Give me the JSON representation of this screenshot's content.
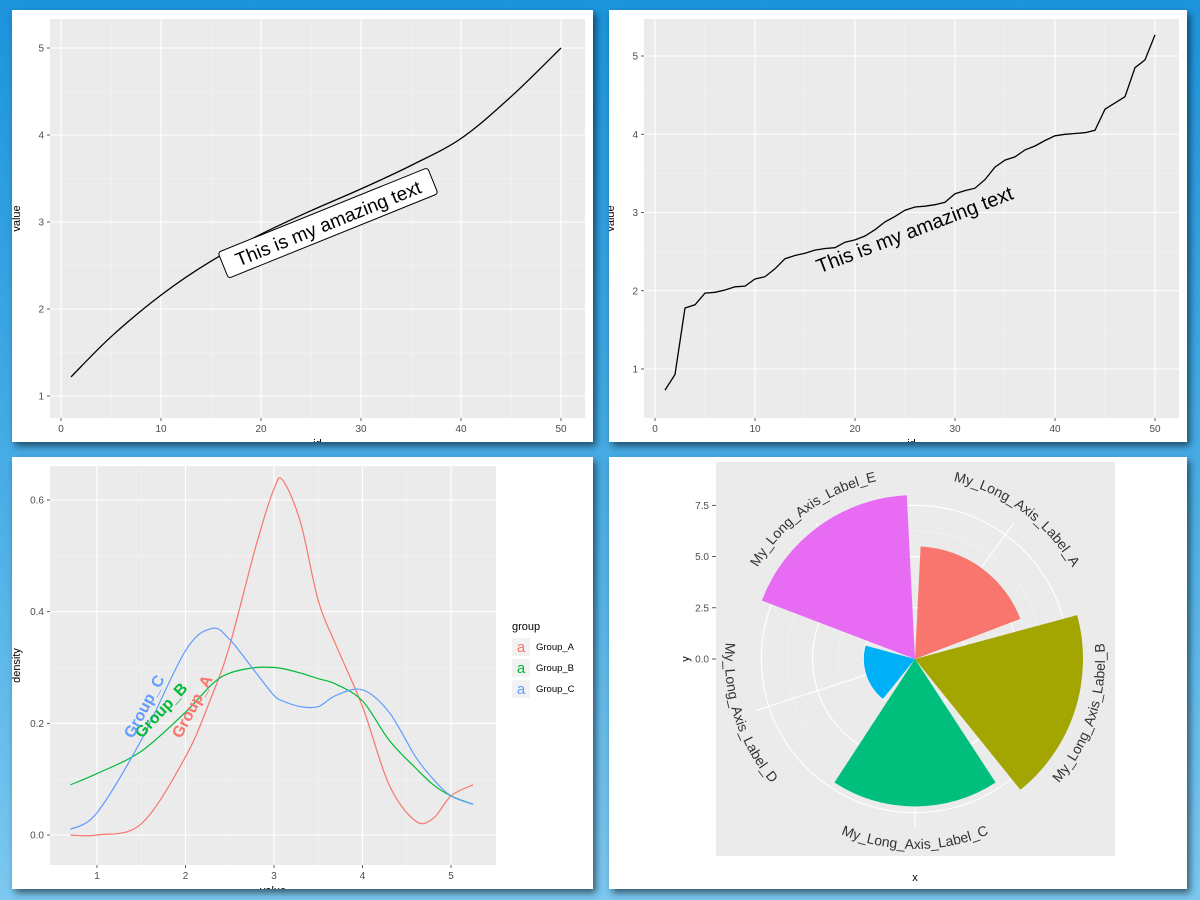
{
  "chart_data": [
    {
      "type": "line",
      "xlabel": "id",
      "ylabel": "value",
      "xlim": [
        1,
        50
      ],
      "ylim": [
        1,
        5
      ],
      "x_ticks": [
        "0",
        "10",
        "20",
        "30",
        "40",
        "50"
      ],
      "y_ticks": [
        "1",
        "2",
        "3",
        "4",
        "5"
      ],
      "annotation": "This is my amazing text",
      "annotation_style": "label-box",
      "grid": true,
      "x": [
        1,
        5,
        10,
        15,
        20,
        25,
        30,
        35,
        40,
        45,
        50
      ],
      "y": [
        1.22,
        1.68,
        2.16,
        2.55,
        2.86,
        3.13,
        3.38,
        3.65,
        3.96,
        4.44,
        5.0
      ]
    },
    {
      "type": "line",
      "xlabel": "id",
      "ylabel": "value",
      "xlim": [
        1,
        50
      ],
      "ylim": [
        0.73,
        5.27
      ],
      "x_ticks": [
        "0",
        "10",
        "20",
        "30",
        "40",
        "50"
      ],
      "y_ticks": [
        "1",
        "2",
        "3",
        "4",
        "5"
      ],
      "annotation": "This is my amazing text",
      "annotation_style": "plain",
      "grid": true,
      "x": [
        1,
        2,
        3,
        4,
        5,
        6,
        7,
        8,
        9,
        10,
        11,
        12,
        13,
        14,
        15,
        16,
        17,
        18,
        19,
        20,
        21,
        22,
        23,
        24,
        25,
        26,
        27,
        28,
        29,
        30,
        31,
        32,
        33,
        34,
        35,
        36,
        37,
        38,
        39,
        40,
        41,
        42,
        43,
        44,
        45,
        46,
        47,
        48,
        49,
        50
      ],
      "y": [
        0.73,
        0.93,
        1.78,
        1.82,
        1.97,
        1.98,
        2.01,
        2.05,
        2.06,
        2.15,
        2.18,
        2.28,
        2.41,
        2.45,
        2.48,
        2.52,
        2.54,
        2.55,
        2.62,
        2.65,
        2.7,
        2.78,
        2.88,
        2.95,
        3.03,
        3.07,
        3.08,
        3.1,
        3.13,
        3.24,
        3.28,
        3.31,
        3.42,
        3.58,
        3.67,
        3.71,
        3.8,
        3.85,
        3.92,
        3.98,
        4.0,
        4.01,
        4.02,
        4.05,
        4.32,
        4.4,
        4.48,
        4.85,
        4.95,
        5.27
      ]
    },
    {
      "type": "line",
      "subtype": "density",
      "xlabel": "value",
      "ylabel": "density",
      "xlim": [
        0.7,
        5.3
      ],
      "ylim": [
        0,
        0.65
      ],
      "x_ticks": [
        "1",
        "2",
        "3",
        "4",
        "5"
      ],
      "y_ticks": [
        "0.0",
        "0.2",
        "0.4",
        "0.6"
      ],
      "grid": true,
      "legend": {
        "title": "group",
        "position": "right",
        "key_glyph": "a"
      },
      "x": [
        0.7,
        1.0,
        1.5,
        2.0,
        2.3,
        2.5,
        2.8,
        3.0,
        3.1,
        3.3,
        3.5,
        3.7,
        4.0,
        4.3,
        4.6,
        4.8,
        5.0,
        5.25
      ],
      "series": [
        {
          "name": "Group_A",
          "color": "#F8766D",
          "label": "Group_A",
          "values": [
            0.0,
            0.0,
            0.02,
            0.14,
            0.25,
            0.34,
            0.52,
            0.62,
            0.635,
            0.56,
            0.42,
            0.34,
            0.23,
            0.09,
            0.025,
            0.03,
            0.07,
            0.09
          ]
        },
        {
          "name": "Group_B",
          "color": "#00BA38",
          "label": "Group_B",
          "values": [
            0.09,
            0.11,
            0.15,
            0.22,
            0.27,
            0.29,
            0.3,
            0.3,
            0.298,
            0.29,
            0.28,
            0.27,
            0.24,
            0.17,
            0.12,
            0.09,
            0.07,
            0.055
          ]
        },
        {
          "name": "Group_C",
          "color": "#619CFF",
          "label": "Group_C",
          "values": [
            0.01,
            0.04,
            0.17,
            0.33,
            0.37,
            0.35,
            0.29,
            0.25,
            0.24,
            0.23,
            0.23,
            0.25,
            0.26,
            0.22,
            0.14,
            0.1,
            0.07,
            0.055
          ]
        }
      ]
    },
    {
      "type": "bar",
      "coord": "polar",
      "xlabel": "x",
      "ylabel": "y",
      "ylim": [
        0,
        8.2
      ],
      "y_ticks": [
        "0.0",
        "2.5",
        "5.0",
        "7.5"
      ],
      "categories": [
        "My_Long_Axis_Label_A",
        "My_Long_Axis_Label_B",
        "My_Long_Axis_Label_C",
        "My_Long_Axis_Label_D",
        "My_Long_Axis_Label_E"
      ],
      "values": [
        5.5,
        8.2,
        7.2,
        2.5,
        8.0
      ],
      "colors": [
        "#F8766D",
        "#A3A500",
        "#00BF7D",
        "#00B0F6",
        "#E76BF3"
      ],
      "grid": true
    }
  ]
}
